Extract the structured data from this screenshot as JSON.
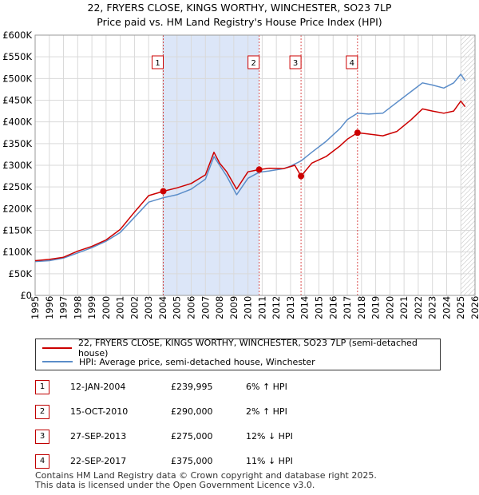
{
  "title_line1": "22, FRYERS CLOSE, KINGS WORTHY, WINCHESTER, SO23 7LP",
  "title_line2": "Price paid vs. HM Land Registry's House Price Index (HPI)",
  "colors": {
    "property": "#cc0000",
    "hpi": "#5b8dc9",
    "shade": "#dce6f8",
    "grid": "#d9d9d9"
  },
  "chart_data": {
    "type": "line",
    "title": "22, FRYERS CLOSE, KINGS WORTHY, WINCHESTER, SO23 7LP",
    "subtitle": "Price paid vs. HM Land Registry's House Price Index (HPI)",
    "xlim": [
      1995,
      2026
    ],
    "ylim": [
      0,
      600000
    ],
    "x_ticks": [
      1995,
      1996,
      1997,
      1998,
      1999,
      2000,
      2001,
      2002,
      2003,
      2004,
      2005,
      2006,
      2007,
      2008,
      2009,
      2010,
      2011,
      2012,
      2013,
      2014,
      2015,
      2016,
      2017,
      2018,
      2019,
      2020,
      2021,
      2022,
      2023,
      2024,
      2025,
      2026
    ],
    "y_ticks": [
      {
        "value": 0,
        "label": "£0"
      },
      {
        "value": 50000,
        "label": "£50K"
      },
      {
        "value": 100000,
        "label": "£100K"
      },
      {
        "value": 150000,
        "label": "£150K"
      },
      {
        "value": 200000,
        "label": "£200K"
      },
      {
        "value": 250000,
        "label": "£250K"
      },
      {
        "value": 300000,
        "label": "£300K"
      },
      {
        "value": 350000,
        "label": "£350K"
      },
      {
        "value": 400000,
        "label": "£400K"
      },
      {
        "value": 450000,
        "label": "£450K"
      },
      {
        "value": 500000,
        "label": "£500K"
      },
      {
        "value": 550000,
        "label": "£550K"
      },
      {
        "value": 600000,
        "label": "£600K"
      }
    ],
    "grid": true,
    "shaded_period": [
      2004.03,
      2010.79
    ],
    "hatched_from": 2025.0,
    "series": [
      {
        "name": "22, FRYERS CLOSE, KINGS WORTHY, WINCHESTER, SO23 7LP (semi-detached house)",
        "color": "#cc0000",
        "points": [
          [
            1995.0,
            80000
          ],
          [
            1996.0,
            83000
          ],
          [
            1997.0,
            88000
          ],
          [
            1998.0,
            102000
          ],
          [
            1999.0,
            113000
          ],
          [
            2000.0,
            128000
          ],
          [
            2001.0,
            152000
          ],
          [
            2002.0,
            192000
          ],
          [
            2003.0,
            230000
          ],
          [
            2004.03,
            239995
          ],
          [
            2005.0,
            248000
          ],
          [
            2006.0,
            258000
          ],
          [
            2007.0,
            278000
          ],
          [
            2007.6,
            330000
          ],
          [
            2008.0,
            305000
          ],
          [
            2008.5,
            285000
          ],
          [
            2009.2,
            245000
          ],
          [
            2010.0,
            285000
          ],
          [
            2010.79,
            290000
          ],
          [
            2011.5,
            293000
          ],
          [
            2012.5,
            292000
          ],
          [
            2013.3,
            300000
          ],
          [
            2013.74,
            275000
          ],
          [
            2014.5,
            305000
          ],
          [
            2015.5,
            320000
          ],
          [
            2016.5,
            345000
          ],
          [
            2017.0,
            360000
          ],
          [
            2017.72,
            375000
          ],
          [
            2018.5,
            372000
          ],
          [
            2019.5,
            368000
          ],
          [
            2020.5,
            378000
          ],
          [
            2021.5,
            405000
          ],
          [
            2022.3,
            430000
          ],
          [
            2023.0,
            425000
          ],
          [
            2023.8,
            420000
          ],
          [
            2024.5,
            425000
          ],
          [
            2025.0,
            448000
          ],
          [
            2025.3,
            435000
          ]
        ]
      },
      {
        "name": "HPI: Average price, semi-detached house, Winchester",
        "color": "#5b8dc9",
        "points": [
          [
            1995.0,
            78000
          ],
          [
            1996.0,
            80000
          ],
          [
            1997.0,
            86000
          ],
          [
            1998.0,
            98000
          ],
          [
            1999.0,
            110000
          ],
          [
            2000.0,
            125000
          ],
          [
            2001.0,
            145000
          ],
          [
            2002.0,
            180000
          ],
          [
            2003.0,
            215000
          ],
          [
            2004.0,
            225000
          ],
          [
            2005.0,
            232000
          ],
          [
            2006.0,
            245000
          ],
          [
            2007.0,
            268000
          ],
          [
            2007.6,
            320000
          ],
          [
            2008.0,
            300000
          ],
          [
            2008.5,
            275000
          ],
          [
            2009.2,
            232000
          ],
          [
            2010.0,
            270000
          ],
          [
            2010.79,
            284000
          ],
          [
            2011.5,
            287000
          ],
          [
            2012.5,
            292000
          ],
          [
            2013.0,
            298000
          ],
          [
            2013.74,
            310000
          ],
          [
            2014.5,
            330000
          ],
          [
            2015.5,
            355000
          ],
          [
            2016.5,
            385000
          ],
          [
            2017.0,
            405000
          ],
          [
            2017.72,
            420000
          ],
          [
            2018.5,
            418000
          ],
          [
            2019.5,
            420000
          ],
          [
            2020.5,
            445000
          ],
          [
            2021.5,
            470000
          ],
          [
            2022.3,
            490000
          ],
          [
            2023.0,
            485000
          ],
          [
            2023.8,
            478000
          ],
          [
            2024.5,
            490000
          ],
          [
            2025.0,
            510000
          ],
          [
            2025.3,
            495000
          ]
        ]
      }
    ],
    "sales": [
      {
        "id": "1",
        "x": 2004.03,
        "y": 239995
      },
      {
        "id": "2",
        "x": 2010.79,
        "y": 290000
      },
      {
        "id": "3",
        "x": 2013.74,
        "y": 275000
      },
      {
        "id": "4",
        "x": 2017.72,
        "y": 375000
      }
    ]
  },
  "legend": {
    "property_label": "22, FRYERS CLOSE, KINGS WORTHY, WINCHESTER, SO23 7LP (semi-detached house)",
    "hpi_label": "HPI: Average price, semi-detached house, Winchester"
  },
  "sales_table": [
    {
      "id": "1",
      "date": "12-JAN-2004",
      "price": "£239,995",
      "hpi": "6% ↑ HPI"
    },
    {
      "id": "2",
      "date": "15-OCT-2010",
      "price": "£290,000",
      "hpi": "2% ↑ HPI"
    },
    {
      "id": "3",
      "date": "27-SEP-2013",
      "price": "£275,000",
      "hpi": "12% ↓ HPI"
    },
    {
      "id": "4",
      "date": "22-SEP-2017",
      "price": "£375,000",
      "hpi": "11% ↓ HPI"
    }
  ],
  "footer": {
    "line1": "Contains HM Land Registry data © Crown copyright and database right 2025.",
    "line2": "This data is licensed under the Open Government Licence v3.0."
  }
}
